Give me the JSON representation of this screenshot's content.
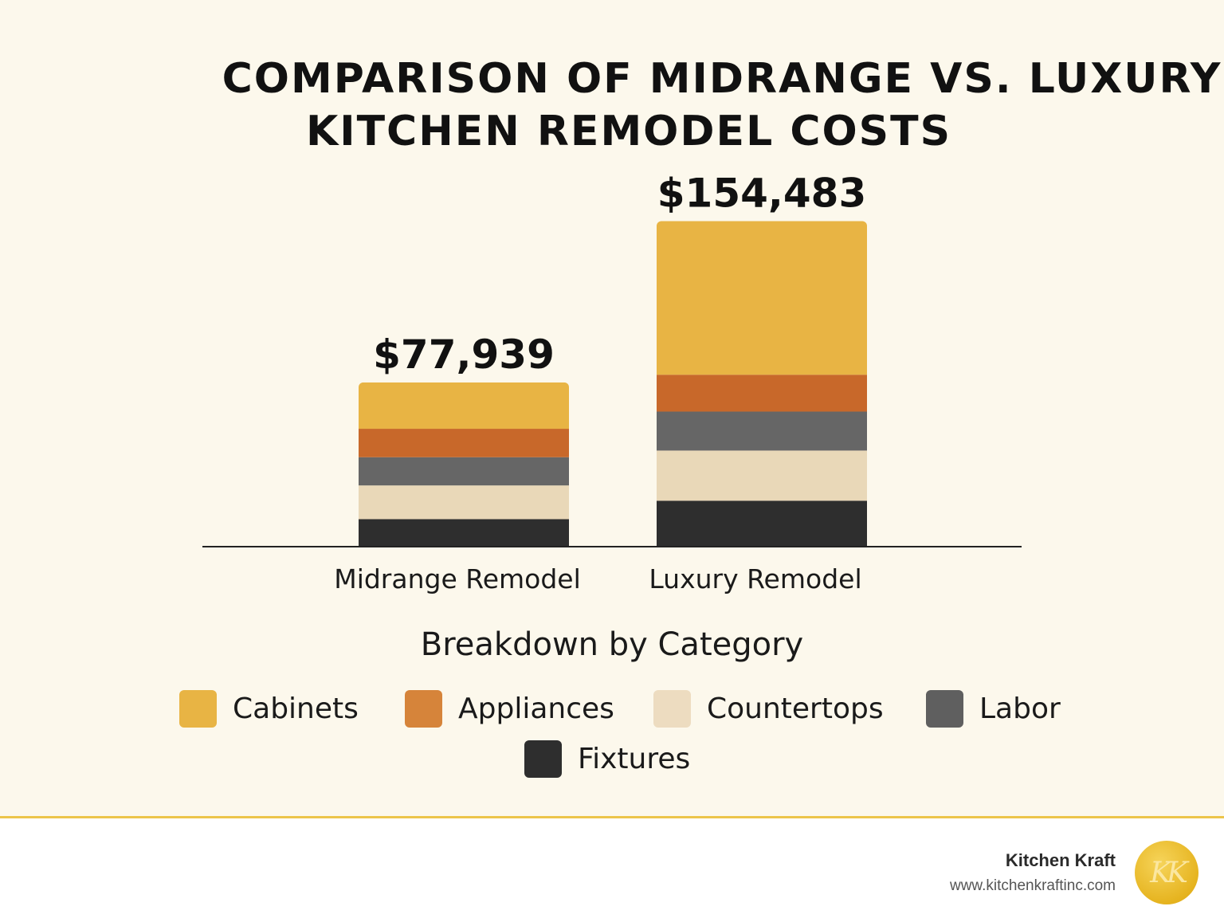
{
  "title_line1": "COMPARISON OF MIDRANGE VS. LUXURY",
  "title_line2": "KITCHEN REMODEL COSTS",
  "chart_data": {
    "type": "bar",
    "stacked": true,
    "categories": [
      "Midrange Remodel",
      "Luxury Remodel"
    ],
    "totals": [
      77939,
      154483
    ],
    "total_labels": [
      "$77,939",
      "$154,483"
    ],
    "series": [
      {
        "name": "Fixtures",
        "color": "#2e2e2e",
        "values": [
          13050,
          21800
        ]
      },
      {
        "name": "Countertops",
        "color": "#e9d8b8",
        "values": [
          16000,
          23800
        ]
      },
      {
        "name": "Labor",
        "color": "#666666",
        "values": [
          13400,
          18500
        ]
      },
      {
        "name": "Appliances",
        "color": "#c8682a",
        "values": [
          13500,
          17500
        ]
      },
      {
        "name": "Cabinets",
        "color": "#e8b444",
        "values": [
          21989,
          72883
        ]
      }
    ],
    "ylim": [
      0,
      180000
    ],
    "grid": false
  },
  "legend": {
    "title": "Breakdown by Category",
    "items": [
      {
        "label": "Cabinets",
        "color": "#e8b444"
      },
      {
        "label": "Appliances",
        "color": "#d6843a"
      },
      {
        "label": "Countertops",
        "color": "#eddcc0"
      },
      {
        "label": "Labor",
        "color": "#5f5f5f"
      },
      {
        "label": "Fixtures",
        "color": "#2e2e2e"
      }
    ]
  },
  "footer": {
    "brand": "Kitchen Kraft",
    "url": "www.kitchenkraftinc.com",
    "logo_text": "KK"
  }
}
